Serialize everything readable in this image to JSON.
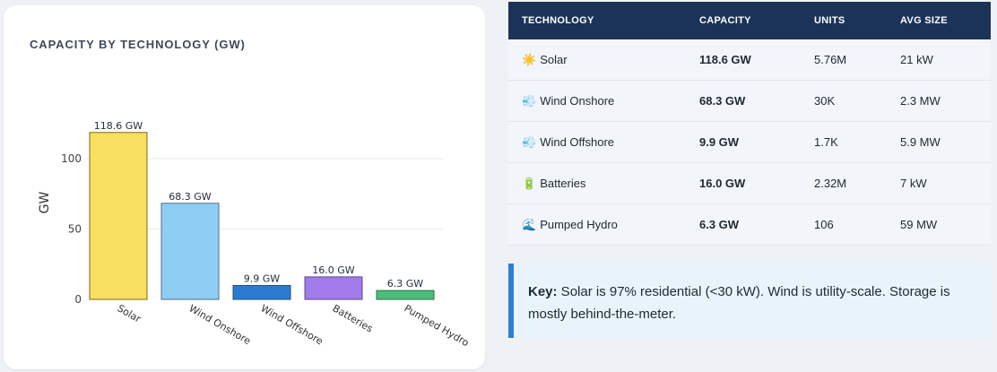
{
  "chart_data": {
    "type": "bar",
    "title": "CAPACITY BY TECHNOLOGY (GW)",
    "categories": [
      "Solar",
      "Wind Onshore",
      "Wind Offshore",
      "Batteries",
      "Pumped Hydro"
    ],
    "values": [
      118.6,
      68.3,
      9.9,
      16.0,
      6.3
    ],
    "data_labels": [
      "118.6 GW",
      "68.3 GW",
      "9.9 GW",
      "16.0 GW",
      "6.3 GW"
    ],
    "colors": [
      "#f7e05f",
      "#8ecdf4",
      "#2b7cd0",
      "#a17bea",
      "#4cbd7a"
    ],
    "border_colors": [
      "#7a6a10",
      "#4f6f8a",
      "#1f4f86",
      "#5b4a8c",
      "#2f6f47"
    ],
    "xlabel": "",
    "ylabel": "GW",
    "ylim": [
      0,
      125
    ],
    "yticks": [
      0,
      50,
      100
    ],
    "grid": true
  },
  "table": {
    "headers": [
      "TECHNOLOGY",
      "CAPACITY",
      "UNITS",
      "AVG SIZE"
    ],
    "rows": [
      {
        "icon": "☀️",
        "icon_name": "sun-icon",
        "tech": "Solar",
        "capacity": "118.6 GW",
        "units": "5.76M",
        "avg": "21 kW"
      },
      {
        "icon": "💨",
        "icon_name": "wind-icon",
        "tech": "Wind Onshore",
        "capacity": "68.3 GW",
        "units": "30K",
        "avg": "2.3 MW"
      },
      {
        "icon": "💨",
        "icon_name": "wind-icon",
        "tech": "Wind Offshore",
        "capacity": "9.9 GW",
        "units": "1.7K",
        "avg": "5.9 MW"
      },
      {
        "icon": "🔋",
        "icon_name": "battery-icon",
        "tech": "Batteries",
        "capacity": "16.0 GW",
        "units": "2.32M",
        "avg": "7 kW"
      },
      {
        "icon": "🌊",
        "icon_name": "water-wave-icon",
        "tech": "Pumped Hydro",
        "capacity": "6.3 GW",
        "units": "106",
        "avg": "59 MW"
      }
    ]
  },
  "key": {
    "label": "Key:",
    "text": " Solar is 97% residential (<30 kW). Wind is utility-scale. Storage is mostly behind-the-meter."
  }
}
